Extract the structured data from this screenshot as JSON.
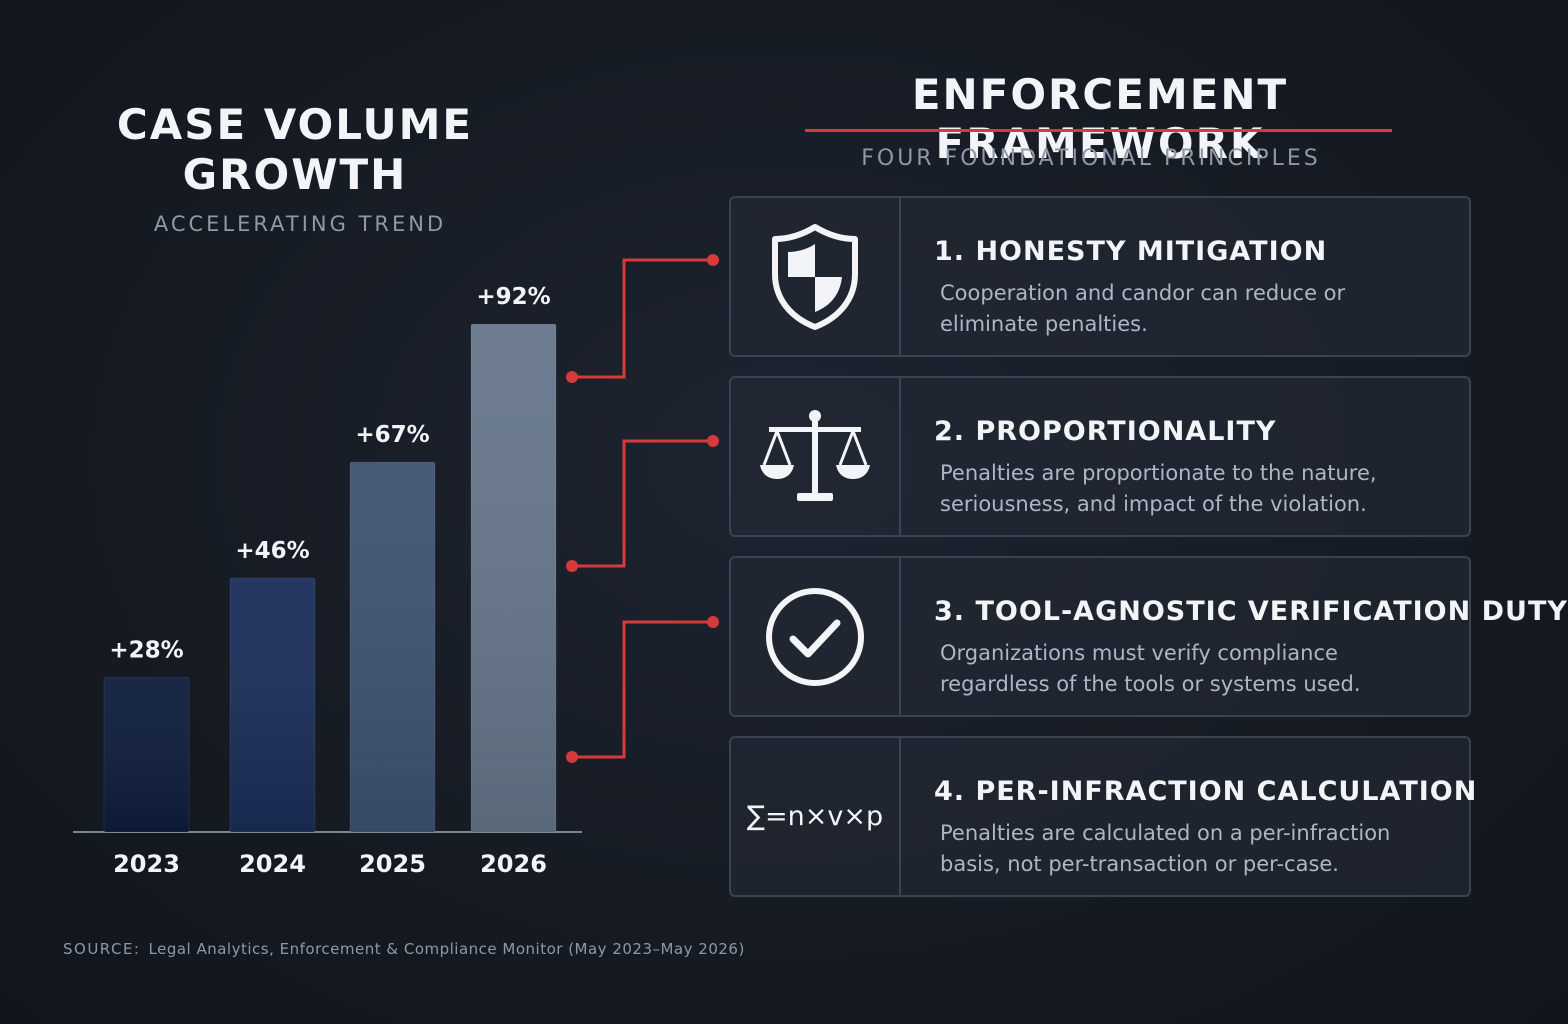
{
  "chart_data": {
    "type": "bar",
    "title_lines": [
      "CASE VOLUME",
      "GROWTH"
    ],
    "subtitle": "ACCELERATING TREND",
    "categories": [
      "2023",
      "2024",
      "2025",
      "2026"
    ],
    "values": [
      28,
      46,
      67,
      92
    ],
    "value_labels": [
      "+28%",
      "+46%",
      "+67%",
      "+92%"
    ],
    "unit": "%",
    "ylim": [
      0,
      100
    ],
    "grid": false,
    "legend": "none",
    "colors": [
      "#0d1c3d",
      "#1b2e5a",
      "#3d5372",
      "#66768b"
    ]
  },
  "framework": {
    "title": "ENFORCEMENT FRAMEWORK",
    "subtitle": "FOUR FOUNDATIONAL PRINCIPLES",
    "accent": "#d63a3a",
    "principles": [
      {
        "heading": "1. HONESTY MITIGATION",
        "text": "Cooperation and candor can reduce or eliminate penalties.",
        "icon": "shield-icon"
      },
      {
        "heading": "2. PROPORTIONALITY",
        "text": "Penalties are proportionate to the nature, seriousness, and impact of the violation.",
        "icon": "scales-icon"
      },
      {
        "heading": "3. TOOL-AGNOSTIC VERIFICATION DUTY",
        "text": "Organizations must verify compliance regardless of the tools or systems used.",
        "icon": "check-circle-icon"
      },
      {
        "heading": "4. PER-INFRACTION CALCULATION",
        "text": "Penalties are calculated on a per-infraction basis, not per-transaction or per-case.",
        "icon": "formula-icon",
        "formula": "∑=n×v×p"
      }
    ]
  },
  "source": {
    "label": "SOURCE:",
    "text": "Legal Analytics, Enforcement & Compliance Monitor (May 2023–May 2026)"
  }
}
